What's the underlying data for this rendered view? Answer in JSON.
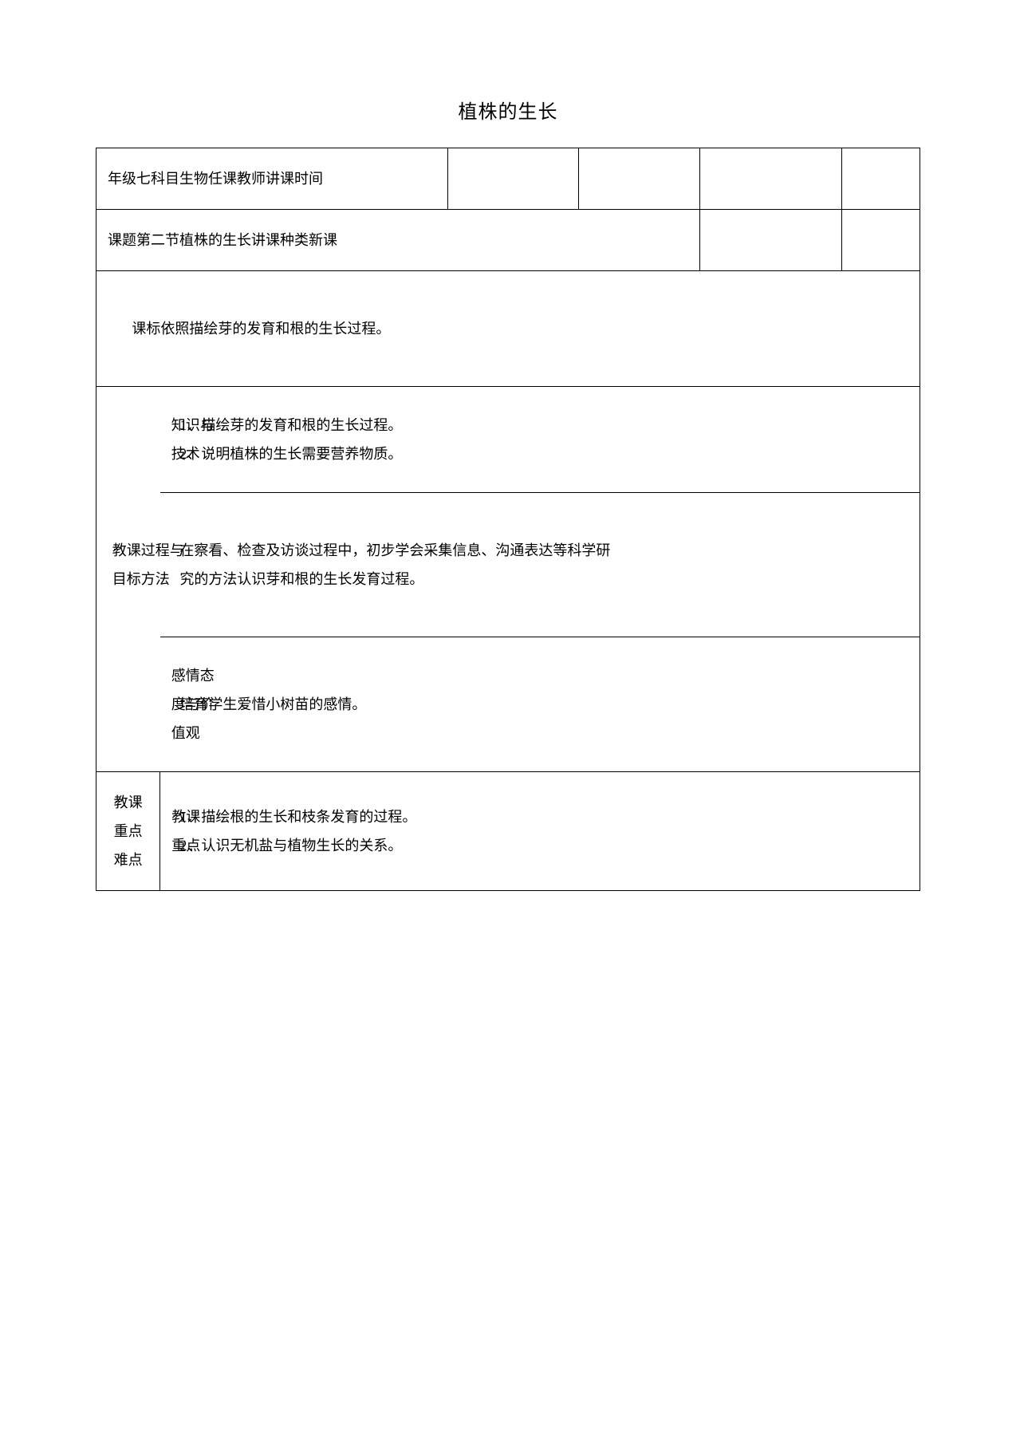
{
  "title": "植株的生长",
  "row1": "年级七科目生物任课教师讲课时间",
  "row2": "课题第二节植株的生长讲课种类新课",
  "row3": "课标依照描绘芽的发育和根的生长过程。",
  "goals_side": "教课目标",
  "g1_l1": "知识与",
  "g1_l2": "技术",
  "g1_r1": "1、描绘芽的发育和根的生长过程。",
  "g1_r2": "2、说明植株的生长需要营养物质。",
  "g2_l1": "过程与",
  "g2_l2": "方法",
  "g2_r1": "在察看、检查及访谈过程中，初步学会采集信息、沟通表达等科学研",
  "g2_r2": "究的方法认识芽和根的生长发育过程。",
  "g3_l": "感情态度与价值观",
  "g3_r": "培育学生爱惜小树苗的感情。",
  "kd_l1": "教课",
  "kd_l2": "重点",
  "kd_l3": "难点",
  "kd_m1": "教课",
  "kd_m2": "重点",
  "kd_r1": "1、描绘根的生长和枝条发育的过程。",
  "kd_r2": "2、认识无机盐与植物生长的关系。"
}
